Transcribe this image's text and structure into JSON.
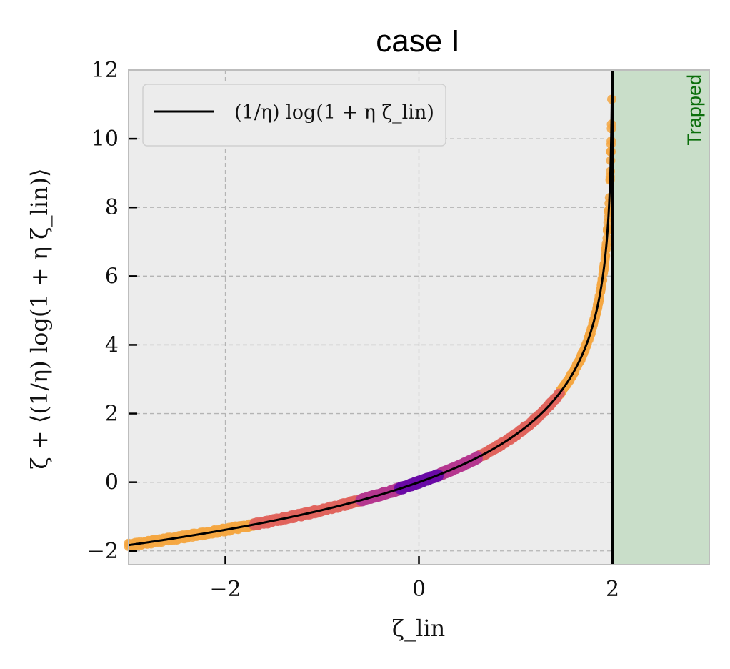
{
  "chart_data": {
    "type": "scatter",
    "title": "case I",
    "xlabel": "ζ_lin",
    "ylabel": "ζ + ⟨(1/η) log(1 + η ζ_lin)⟩",
    "xlim": [
      -3,
      3
    ],
    "ylim": [
      -2.4,
      12
    ],
    "xticks": [
      -2,
      0,
      2
    ],
    "xtick_labels": [
      "−2",
      "0",
      "2"
    ],
    "yticks": [
      -2,
      0,
      2,
      4,
      6,
      8,
      10,
      12
    ],
    "ytick_labels": [
      "−2",
      "0",
      "2",
      "4",
      "6",
      "8",
      "10",
      "12"
    ],
    "grid": true,
    "legend": {
      "position": "top-left",
      "entries": [
        "(1/η) log(1 + η ζ_lin)"
      ]
    },
    "curve": {
      "name": "(1/η) log(1 + η ζ_lin)",
      "formula": "(1/eta) * log(1 + eta * x)",
      "eta": -0.5,
      "x_range": [
        -3,
        2
      ],
      "color": "#000000"
    },
    "scatter_bands": [
      {
        "x_range": [
          -3,
          -1.7
        ],
        "color": "#f5a742"
      },
      {
        "x_range": [
          1.45,
          2.0
        ],
        "color": "#f5a742"
      },
      {
        "x_range": [
          -1.7,
          -0.6
        ],
        "color": "#e0645d"
      },
      {
        "x_range": [
          0.6,
          1.45
        ],
        "color": "#e0645d"
      },
      {
        "x_range": [
          -0.6,
          -0.2
        ],
        "color": "#b5378f"
      },
      {
        "x_range": [
          0.2,
          0.6
        ],
        "color": "#b5378f"
      },
      {
        "x_range": [
          -0.2,
          0.2
        ],
        "color": "#6a0aa6"
      }
    ],
    "shaded_region": {
      "x_range": [
        2,
        3
      ],
      "label": "Trapped",
      "color": "#c9dec9"
    },
    "vertical_line": {
      "x": 2,
      "color": "#000000"
    },
    "background": "#ececec"
  }
}
